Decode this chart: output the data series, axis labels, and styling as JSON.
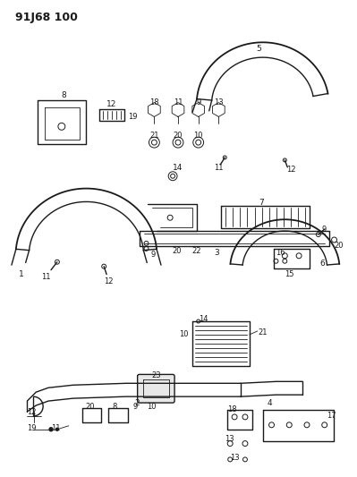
{
  "title": "91J68 100",
  "bg_color": "#ffffff",
  "line_color": "#1a1a1a",
  "title_fontsize": 9,
  "title_font_weight": "bold",
  "figsize": [
    3.99,
    5.33
  ],
  "dpi": 100
}
